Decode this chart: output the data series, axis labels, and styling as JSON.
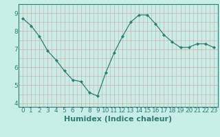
{
  "x": [
    0,
    1,
    2,
    3,
    4,
    5,
    6,
    7,
    8,
    9,
    10,
    11,
    12,
    13,
    14,
    15,
    16,
    17,
    18,
    19,
    20,
    21,
    22,
    23
  ],
  "y": [
    8.7,
    8.3,
    7.7,
    6.9,
    6.4,
    5.8,
    5.3,
    5.2,
    4.6,
    4.4,
    5.7,
    6.8,
    7.7,
    8.5,
    8.9,
    8.9,
    8.4,
    7.8,
    7.4,
    7.1,
    7.1,
    7.3,
    7.3,
    7.1
  ],
  "xlabel": "Humidex (Indice chaleur)",
  "ylim": [
    3.8,
    9.5
  ],
  "xlim": [
    -0.5,
    23.5
  ],
  "yticks": [
    4,
    5,
    6,
    7,
    8,
    9
  ],
  "xticks": [
    0,
    1,
    2,
    3,
    4,
    5,
    6,
    7,
    8,
    9,
    10,
    11,
    12,
    13,
    14,
    15,
    16,
    17,
    18,
    19,
    20,
    21,
    22,
    23
  ],
  "line_color": "#2d7d72",
  "marker_color": "#2d7d72",
  "bg_color": "#c8eee8",
  "plot_bg": "#c8eee8",
  "grid_major_color": "#d8a8a8",
  "grid_minor_color": "#d8a8a8",
  "spine_color": "#2d7d72",
  "xlabel_fontsize": 8,
  "tick_fontsize": 6.5
}
